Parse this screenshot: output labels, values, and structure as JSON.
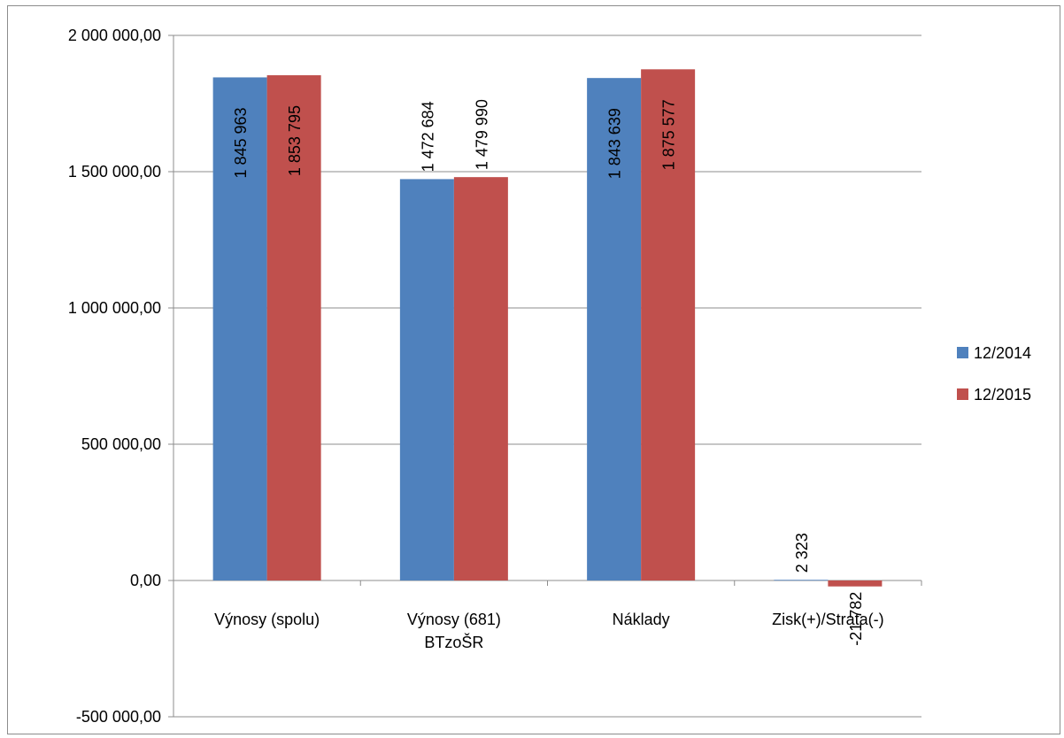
{
  "chart_data": {
    "type": "bar",
    "categories": [
      "Výnosy (spolu)",
      "Výnosy (681) BTzoŠR",
      "Náklady",
      "Zisk(+)/Strata(-)"
    ],
    "category_lines": [
      [
        "Výnosy (spolu)"
      ],
      [
        "Výnosy (681)",
        "BTzoŠR"
      ],
      [
        "Náklady"
      ],
      [
        "Zisk(+)/Strata(-)"
      ]
    ],
    "series": [
      {
        "name": "12/2014",
        "color": "#4f81bd",
        "values": [
          1845963,
          1472684,
          1843639,
          2323
        ],
        "labels": [
          "1 845 963",
          "1 472 684",
          "1 843 639",
          "2 323"
        ]
      },
      {
        "name": "12/2015",
        "color": "#c0504d",
        "values": [
          1853795,
          1479990,
          1875577,
          -21782
        ],
        "labels": [
          "1 853 795",
          "1 479 990",
          "1 875 577",
          "-21 782"
        ]
      }
    ],
    "ylim": [
      -500000,
      2000000
    ],
    "yticks": [
      -500000,
      0,
      500000,
      1000000,
      1500000,
      2000000
    ],
    "ytick_labels": [
      "-500 000,00",
      "0,00",
      "500 000,00",
      "1 000 000,00",
      "1 500 000,00",
      "2 000 000,00"
    ],
    "grid": true,
    "legend": "right",
    "title": "",
    "xlabel": "",
    "ylabel": ""
  }
}
